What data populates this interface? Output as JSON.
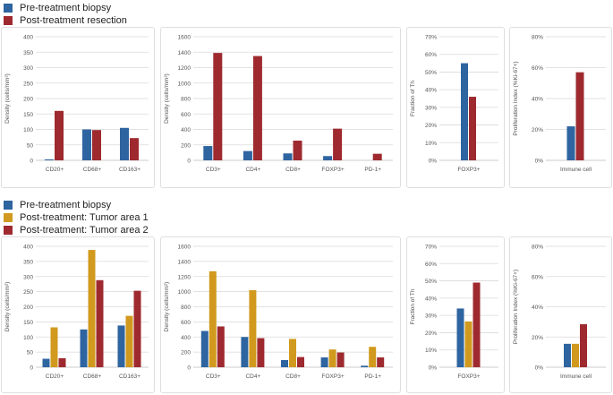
{
  "colors": {
    "biopsy": "#2e64a0",
    "resection": "#9e2a2f",
    "tumor1": "#d19a1e",
    "tumor2": "#9e2a2f",
    "grid": "#d9d9d9",
    "axis": "#bbbbbb"
  },
  "legend_top": [
    {
      "label": "Pre-treatment  biopsy",
      "color": "#2e64a0"
    },
    {
      "label": "Post-treatment  resection",
      "color": "#9e2a2f"
    }
  ],
  "legend_bottom": [
    {
      "label": "Pre-treatment  biopsy",
      "color": "#2e64a0"
    },
    {
      "label": "Post-treatment:  Tumor area 1",
      "color": "#d19a1e"
    },
    {
      "label": "Post-treatment:  Tumor area 2",
      "color": "#9e2a2f"
    }
  ],
  "chart_data": [
    {
      "id": "top-myeloid",
      "type": "bar",
      "ylabel": "Density (cells/mm²)",
      "categories": [
        "CD20+",
        "CD68+",
        "CD163+"
      ],
      "ylim": [
        0,
        400
      ],
      "yticks": [
        "0",
        "50",
        "100",
        "150",
        "200",
        "250",
        "300",
        "350",
        "400"
      ],
      "series": [
        {
          "name": "Pre-treatment biopsy",
          "color": "#2e64a0",
          "values": [
            3,
            100,
            105
          ]
        },
        {
          "name": "Post-treatment resection",
          "color": "#9e2a2f",
          "values": [
            160,
            98,
            72
          ]
        }
      ]
    },
    {
      "id": "top-lymphoid",
      "type": "bar",
      "ylabel": "Density (cells/mm²)",
      "categories": [
        "CD3+",
        "CD4+",
        "CD8+",
        "FOXP3+",
        "PD-1+"
      ],
      "ylim": [
        0,
        1600
      ],
      "yticks": [
        "0",
        "200",
        "400",
        "600",
        "800",
        "1000",
        "1200",
        "1400",
        "1600"
      ],
      "series": [
        {
          "name": "Pre-treatment biopsy",
          "color": "#2e64a0",
          "values": [
            185,
            120,
            90,
            55,
            0
          ]
        },
        {
          "name": "Post-treatment resection",
          "color": "#9e2a2f",
          "values": [
            1390,
            1350,
            255,
            410,
            85
          ]
        }
      ]
    },
    {
      "id": "top-foxp3",
      "type": "bar",
      "ylabel": "Fraction of Th",
      "categories": [
        "FOXP3+"
      ],
      "ylim": [
        0,
        70
      ],
      "yticks": [
        "0%",
        "10%",
        "20%",
        "30%",
        "40%",
        "50%",
        "60%",
        "70%"
      ],
      "series": [
        {
          "name": "Pre-treatment biopsy",
          "color": "#2e64a0",
          "values": [
            55
          ]
        },
        {
          "name": "Post-treatment resection",
          "color": "#9e2a2f",
          "values": [
            36
          ]
        }
      ]
    },
    {
      "id": "top-ki67",
      "type": "bar",
      "ylabel": "Proliferation Index (%Ki-67+)",
      "categories": [
        "Immune cell"
      ],
      "ylim": [
        0,
        80
      ],
      "yticks": [
        "0%",
        "20%",
        "40%",
        "60%",
        "80%"
      ],
      "series": [
        {
          "name": "Pre-treatment biopsy",
          "color": "#2e64a0",
          "values": [
            22
          ]
        },
        {
          "name": "Post-treatment resection",
          "color": "#9e2a2f",
          "values": [
            57
          ]
        }
      ]
    },
    {
      "id": "bottom-myeloid",
      "type": "bar",
      "ylabel": "Density (cells/mm²)",
      "categories": [
        "CD20+",
        "CD68+",
        "CD163+"
      ],
      "ylim": [
        0,
        400
      ],
      "yticks": [
        "0",
        "50",
        "100",
        "150",
        "200",
        "250",
        "300",
        "350",
        "400"
      ],
      "series": [
        {
          "name": "Pre-treatment biopsy",
          "color": "#2e64a0",
          "values": [
            28,
            125,
            138
          ]
        },
        {
          "name": "Post-treatment: Tumor area 1",
          "color": "#d19a1e",
          "values": [
            132,
            388,
            170
          ]
        },
        {
          "name": "Post-treatment: Tumor area 2",
          "color": "#9e2a2f",
          "values": [
            30,
            288,
            253
          ]
        }
      ]
    },
    {
      "id": "bottom-lymphoid",
      "type": "bar",
      "ylabel": "Density (cells/mm²)",
      "categories": [
        "CD3+",
        "CD4+",
        "CD8+",
        "FOXP3+",
        "PD-1+"
      ],
      "ylim": [
        0,
        1600
      ],
      "yticks": [
        "0",
        "200",
        "400",
        "600",
        "800",
        "1000",
        "1200",
        "1400",
        "1600"
      ],
      "series": [
        {
          "name": "Pre-treatment biopsy",
          "color": "#2e64a0",
          "values": [
            480,
            400,
            95,
            130,
            20
          ]
        },
        {
          "name": "Post-treatment: Tumor area 1",
          "color": "#d19a1e",
          "values": [
            1270,
            1020,
            375,
            235,
            270
          ]
        },
        {
          "name": "Post-treatment: Tumor area 2",
          "color": "#9e2a2f",
          "values": [
            540,
            385,
            135,
            195,
            130
          ]
        }
      ]
    },
    {
      "id": "bottom-foxp3",
      "type": "bar",
      "ylabel": "Fraction of Th",
      "categories": [
        "FOXP3+"
      ],
      "ylim": [
        0,
        70
      ],
      "yticks": [
        "0%",
        "10%",
        "20%",
        "30%",
        "40%",
        "50%",
        "60%",
        "70%"
      ],
      "series": [
        {
          "name": "Pre-treatment biopsy",
          "color": "#2e64a0",
          "values": [
            34
          ]
        },
        {
          "name": "Post-treatment: Tumor area 1",
          "color": "#d19a1e",
          "values": [
            26.5
          ]
        },
        {
          "name": "Post-treatment: Tumor area 2",
          "color": "#9e2a2f",
          "values": [
            49
          ]
        }
      ]
    },
    {
      "id": "bottom-ki67",
      "type": "bar",
      "ylabel": "Proliferation Index (%Ki-67+)",
      "categories": [
        "Immune cell"
      ],
      "ylim": [
        0,
        80
      ],
      "yticks": [
        "0%",
        "20%",
        "40%",
        "60%",
        "80%"
      ],
      "series": [
        {
          "name": "Pre-treatment biopsy",
          "color": "#2e64a0",
          "values": [
            15.5
          ]
        },
        {
          "name": "Post-treatment: Tumor area 1",
          "color": "#d19a1e",
          "values": [
            15.5
          ]
        },
        {
          "name": "Post-treatment: Tumor area 2",
          "color": "#9e2a2f",
          "values": [
            28.5
          ]
        }
      ]
    }
  ]
}
